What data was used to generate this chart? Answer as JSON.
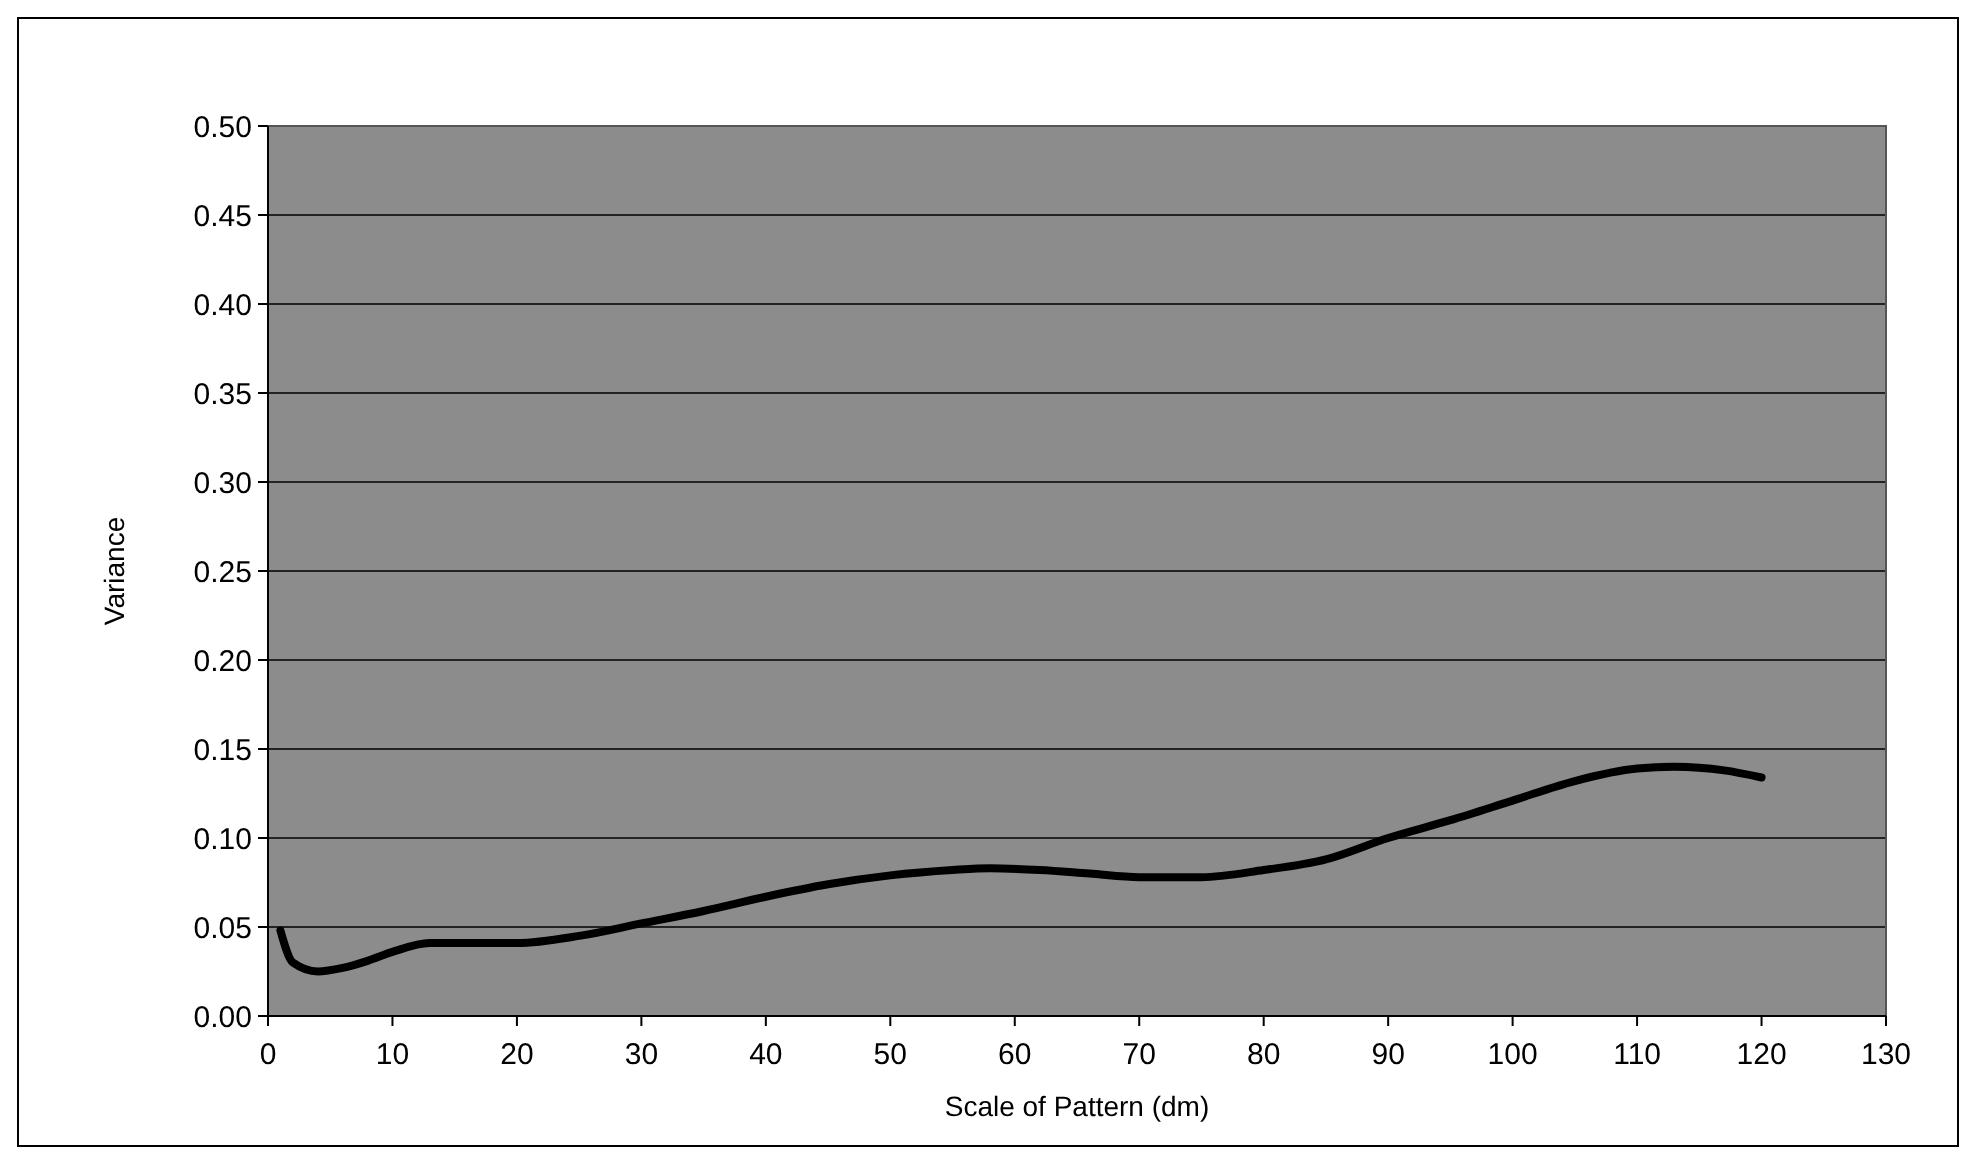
{
  "chart_data": {
    "type": "line",
    "xlabel": "Scale of Pattern (dm)",
    "ylabel": "Variance",
    "x": [
      1,
      2,
      4,
      6,
      8,
      10,
      13,
      16,
      20,
      25,
      30,
      35,
      40,
      45,
      50,
      55,
      58,
      62,
      66,
      70,
      75,
      80,
      85,
      90,
      95,
      100,
      105,
      110,
      113,
      117,
      120
    ],
    "series": [
      {
        "color": "#000000",
        "values": [
          0.048,
          0.03,
          0.025,
          0.027,
          0.031,
          0.036,
          0.041,
          0.041,
          0.041,
          0.045,
          0.052,
          0.059,
          0.067,
          0.074,
          0.079,
          0.082,
          0.083,
          0.082,
          0.08,
          0.078,
          0.078,
          0.082,
          0.088,
          0.1,
          0.11,
          0.121,
          0.132,
          0.139,
          0.14,
          0.138,
          0.134
        ]
      }
    ],
    "xlim": [
      0,
      130
    ],
    "xticks": [
      0,
      10,
      20,
      30,
      40,
      50,
      60,
      70,
      80,
      90,
      100,
      110,
      120,
      130
    ],
    "ylim": [
      0,
      0.5
    ],
    "yticks": [
      {
        "value": 0,
        "label": "0.00"
      },
      {
        "value": 0.05,
        "label": "0.05"
      },
      {
        "value": 0.1,
        "label": "0.10"
      },
      {
        "value": 0.15,
        "label": "0.15"
      },
      {
        "value": 0.2,
        "label": "0.20"
      },
      {
        "value": 0.25,
        "label": "0.25"
      },
      {
        "value": 0.3,
        "label": "0.30"
      },
      {
        "value": 0.35,
        "label": "0.35"
      },
      {
        "value": 0.4,
        "label": "0.40"
      },
      {
        "value": 0.45,
        "label": "0.45"
      },
      {
        "value": 0.5,
        "label": "0.50"
      }
    ],
    "grid": "y",
    "marker": "none",
    "line_style": "solid"
  }
}
